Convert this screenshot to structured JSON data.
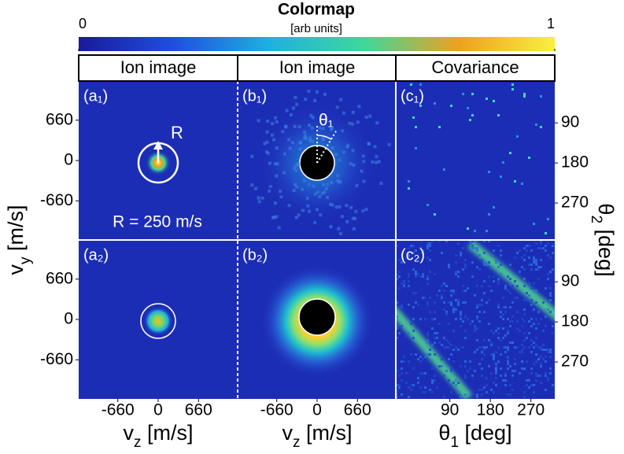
{
  "colorbar": {
    "title": "Colormap",
    "unit": "[arb units]",
    "ticks": [
      0,
      1
    ],
    "colors": [
      "#1a1a9a",
      "#1f4fe0",
      "#1fb0e0",
      "#3fd89a",
      "#f0a020",
      "#f8f040"
    ]
  },
  "columns": [
    "Ion image",
    "Ion image",
    "Covariance"
  ],
  "panels": [
    [
      "(a₁)",
      "(b₁)",
      "(c₁)"
    ],
    [
      "(a₂)",
      "(b₂)",
      "(c₂)"
    ]
  ],
  "axes": {
    "vy": {
      "lim": [
        -1300,
        1300
      ],
      "ticks": [
        -660,
        0,
        660
      ],
      "label": {
        "main": "v",
        "sub": "y",
        "unit": " [m/s]"
      }
    },
    "vz": {
      "lim": [
        -1300,
        1300
      ],
      "ticks": [
        -660,
        0,
        660
      ],
      "label": {
        "main": "v",
        "sub": "z",
        "unit": " [m/s]"
      }
    },
    "theta1": {
      "lim": [
        -30,
        323
      ],
      "ticks": [
        90,
        180,
        270
      ],
      "label": {
        "main": "θ",
        "sub": "1",
        "unit": " [deg]"
      }
    },
    "theta2": {
      "lim": [
        -4,
        353
      ],
      "ticks": [
        90,
        180,
        270
      ],
      "label": {
        "main": "θ",
        "sub": "2",
        "unit": " [deg]"
      }
    }
  },
  "annotations": {
    "radius_symbol": "R",
    "radius_text": "R = 250 m/s",
    "angle_symbol": "θ₁"
  }
}
